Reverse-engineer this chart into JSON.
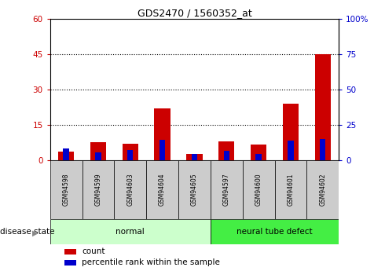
{
  "title": "GDS2470 / 1560352_at",
  "samples": [
    "GSM94598",
    "GSM94599",
    "GSM94603",
    "GSM94604",
    "GSM94605",
    "GSM94597",
    "GSM94600",
    "GSM94601",
    "GSM94602"
  ],
  "count_values": [
    3.5,
    7.5,
    7.0,
    22.0,
    2.5,
    8.0,
    6.5,
    24.0,
    45.0
  ],
  "percentile_values": [
    8.0,
    5.5,
    7.0,
    14.5,
    4.0,
    6.5,
    4.0,
    13.5,
    15.0
  ],
  "groups": [
    {
      "label": "normal",
      "start": 0,
      "end": 5,
      "color": "#ccffcc"
    },
    {
      "label": "neural tube defect",
      "start": 5,
      "end": 9,
      "color": "#44ee44"
    }
  ],
  "left_ylim": [
    0,
    60
  ],
  "left_yticks": [
    0,
    15,
    30,
    45,
    60
  ],
  "left_yticklabels": [
    "0",
    "15",
    "30",
    "45",
    "60"
  ],
  "right_ylim": [
    0,
    100
  ],
  "right_yticks": [
    0,
    25,
    50,
    75,
    100
  ],
  "right_yticklabels": [
    "0",
    "25",
    "50",
    "75",
    "100%"
  ],
  "count_color": "#cc0000",
  "percentile_color": "#0000cc",
  "count_bar_width": 0.5,
  "pct_bar_width": 0.18,
  "left_tick_color": "#cc0000",
  "right_tick_color": "#0000cc",
  "grid_color": "#000000",
  "bg_color": "#ffffff",
  "plot_bg_color": "#ffffff",
  "sample_box_color": "#cccccc",
  "disease_state_label": "disease state",
  "legend_count_label": "count",
  "legend_percentile_label": "percentile rank within the sample"
}
